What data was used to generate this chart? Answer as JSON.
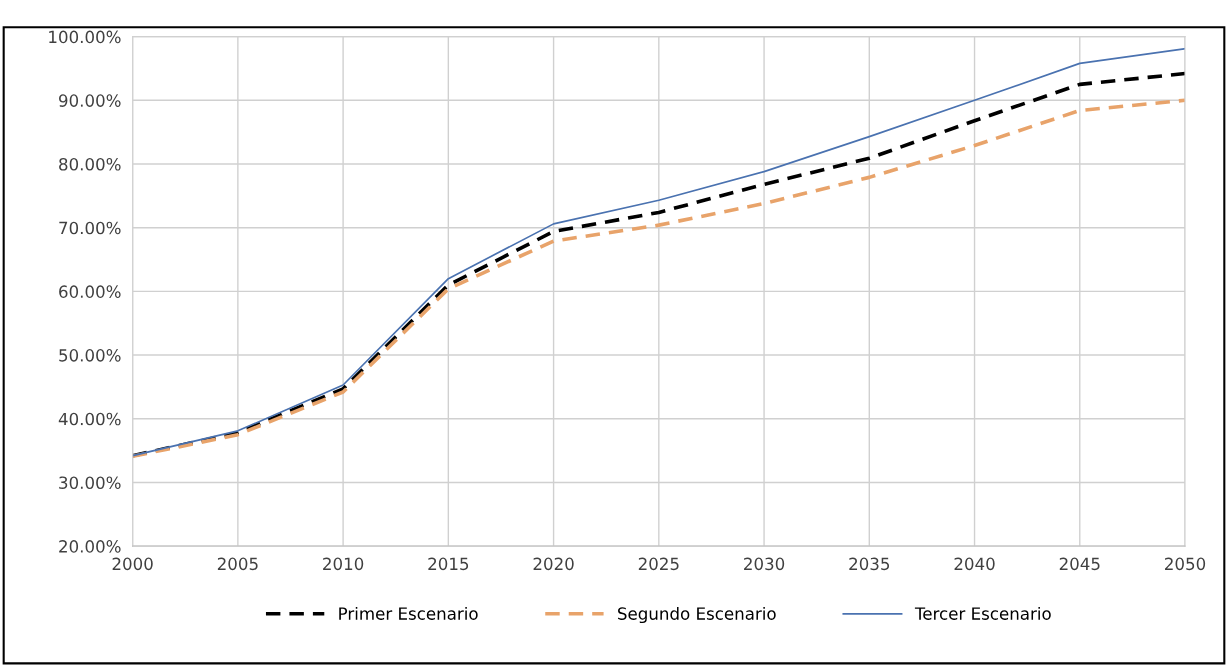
{
  "chart_data": {
    "type": "line",
    "x": [
      2000,
      2005,
      2010,
      2015,
      2020,
      2025,
      2030,
      2035,
      2040,
      2045,
      2050
    ],
    "series": [
      {
        "name": "Primer Escenario",
        "color": "#000000",
        "line_style": "dashed",
        "values": [
          34.2,
          37.8,
          44.7,
          61.0,
          69.4,
          72.4,
          76.8,
          80.9,
          86.8,
          92.5,
          94.2
        ]
      },
      {
        "name": "Segundo Escenario",
        "color": "#e8a36a",
        "line_style": "dashed",
        "values": [
          34.1,
          37.5,
          44.2,
          60.4,
          67.9,
          70.4,
          73.8,
          77.9,
          82.9,
          88.4,
          90.0
        ]
      },
      {
        "name": "Tercer Escenario",
        "color": "#4a72b0",
        "line_style": "solid",
        "values": [
          34.2,
          38.1,
          45.3,
          62.0,
          70.6,
          74.3,
          78.8,
          84.3,
          90.0,
          95.8,
          98.1
        ]
      }
    ],
    "xlim": [
      2000,
      2050
    ],
    "xticks": [
      2000,
      2005,
      2010,
      2015,
      2020,
      2025,
      2030,
      2035,
      2040,
      2045,
      2050
    ],
    "ylim": [
      20,
      100
    ],
    "yticks": [
      {
        "value": 20,
        "label": "20.00%"
      },
      {
        "value": 30,
        "label": "30.00%"
      },
      {
        "value": 40,
        "label": "40.00%"
      },
      {
        "value": 50,
        "label": "50.00%"
      },
      {
        "value": 60,
        "label": "60.00%"
      },
      {
        "value": 70,
        "label": "70.00%"
      },
      {
        "value": 80,
        "label": "80.00%"
      },
      {
        "value": 90,
        "label": "90.00%"
      },
      {
        "value": 100,
        "label": "100.00%"
      }
    ],
    "grid": true,
    "legend": "bottom",
    "marker": "none"
  }
}
